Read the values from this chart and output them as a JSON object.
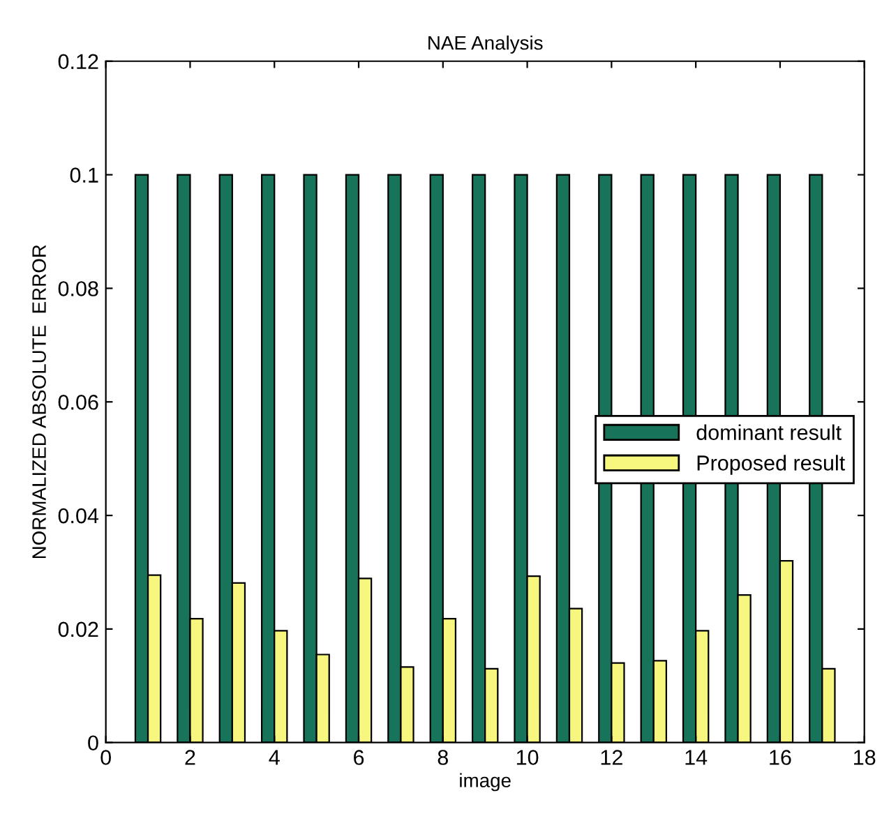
{
  "chart_data": {
    "type": "bar",
    "title": "NAE Analysis",
    "xlabel": "image",
    "ylabel": "NORMALIZED ABSOLUTE  ERROR",
    "x": [
      1,
      2,
      3,
      4,
      5,
      6,
      7,
      8,
      9,
      10,
      11,
      12,
      13,
      14,
      15,
      16,
      17
    ],
    "series": [
      {
        "name": "dominant result",
        "color": "#17735a",
        "values": [
          0.1,
          0.1,
          0.1,
          0.1,
          0.1,
          0.1,
          0.1,
          0.1,
          0.1,
          0.1,
          0.1,
          0.1,
          0.1,
          0.1,
          0.1,
          0.1,
          0.1
        ]
      },
      {
        "name": "Proposed result",
        "color": "#f7f77f",
        "values": [
          0.0295,
          0.0218,
          0.0281,
          0.0197,
          0.0155,
          0.0289,
          0.0133,
          0.0218,
          0.013,
          0.0293,
          0.0236,
          0.014,
          0.0144,
          0.0197,
          0.026,
          0.032,
          0.013
        ]
      }
    ],
    "xlim": [
      0,
      18
    ],
    "xticks": [
      0,
      2,
      4,
      6,
      8,
      10,
      12,
      14,
      16,
      18
    ],
    "ylim": [
      0,
      0.12
    ],
    "yticks": [
      0,
      0.02,
      0.04,
      0.06,
      0.08,
      0.1,
      0.12
    ],
    "grid": false,
    "legend": "right"
  }
}
